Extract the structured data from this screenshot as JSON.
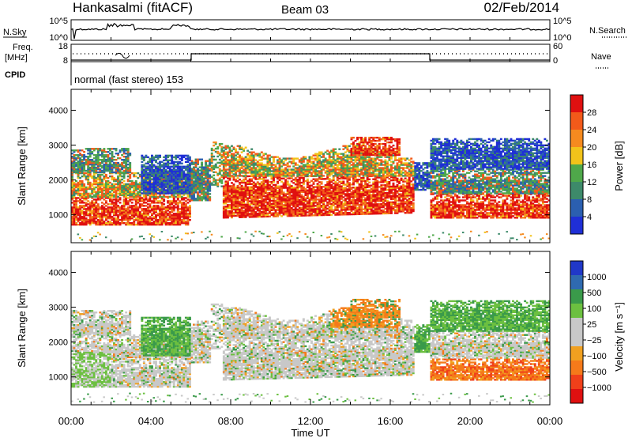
{
  "header": {
    "station": "Hankasalmi (fitACF)",
    "beam": "Beam 03",
    "date": "02/Feb/2014"
  },
  "top_panels": {
    "nsky_label": "N.Sky",
    "nsearch_label": "N.Search",
    "freq_label_line1": "Freq.",
    "freq_label_line2": "[MHz]",
    "nave_label": "Nave",
    "cpid_label": "CPID",
    "cpid_text": "normal (fast stereo) 153",
    "noise_ticks_left": [
      "10^5",
      "10^0"
    ],
    "noise_ticks_right": [
      "10^5",
      "10^0"
    ],
    "freq_ticks": [
      "18",
      "8"
    ],
    "nave_ticks": [
      "60",
      "0"
    ]
  },
  "colors": {
    "power_scale": [
      "#1f2fd6",
      "#2b5fb0",
      "#3d8a6a",
      "#4fa84a",
      "#f2c31a",
      "#f58a1f",
      "#f25a1a",
      "#e01010"
    ],
    "velocity_scale": [
      "#e01010",
      "#f0401a",
      "#f57a1a",
      "#f0a020",
      "#c8c8c8",
      "#c8c8c8",
      "#6cc040",
      "#3a9a4a",
      "#2f6ab0",
      "#2038c8"
    ],
    "ground_scatter": "#c8c8c8"
  },
  "chart_data": [
    {
      "type": "heatmap",
      "name": "Power",
      "ylabel": "Slant Range [km]",
      "colorbar_label": "Power [dB]",
      "colorbar_ticks": [
        "28",
        "24",
        "20",
        "16",
        "12",
        "8",
        "4"
      ],
      "yticks": [
        "4000",
        "3000",
        "2000",
        "1000"
      ],
      "ylim": [
        200,
        4600
      ],
      "xlim_hours": [
        0,
        24
      ]
    },
    {
      "type": "heatmap",
      "name": "Velocity",
      "ylabel": "Slant Range [km]",
      "colorbar_label": "Velocity [m s⁻¹]",
      "colorbar_ticks": [
        "1000",
        "500",
        "100",
        "25",
        "−25",
        "−100",
        "−500",
        "−1000"
      ],
      "yticks": [
        "4000",
        "3000",
        "2000",
        "1000"
      ],
      "ylim": [
        200,
        4600
      ],
      "xlim_hours": [
        0,
        24
      ]
    }
  ],
  "xaxis": {
    "ticks": [
      "00:00",
      "04:00",
      "08:00",
      "12:00",
      "16:00",
      "20:00",
      "00:00"
    ],
    "label": "Time UT"
  }
}
